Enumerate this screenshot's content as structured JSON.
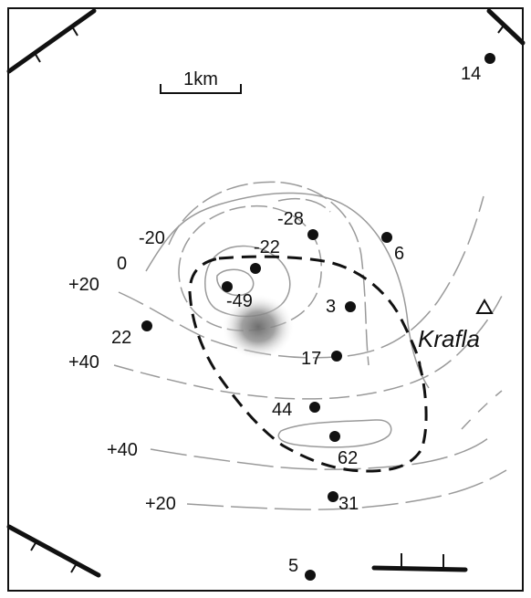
{
  "scale_bar": {
    "label": "1km"
  },
  "volcano": {
    "name": "Krafla"
  },
  "contour_labels": [
    "-20",
    "0",
    "+20",
    "+40",
    "+40",
    "+20",
    "-22",
    "-28"
  ],
  "station_values": [
    "14",
    "6",
    "-49",
    "3",
    "22",
    "17",
    "44",
    "62",
    "31",
    "5"
  ],
  "colors": {
    "ink": "#111111",
    "contour": "#9a9a9a",
    "blob": "#6e6e6e",
    "background": "#ffffff"
  }
}
